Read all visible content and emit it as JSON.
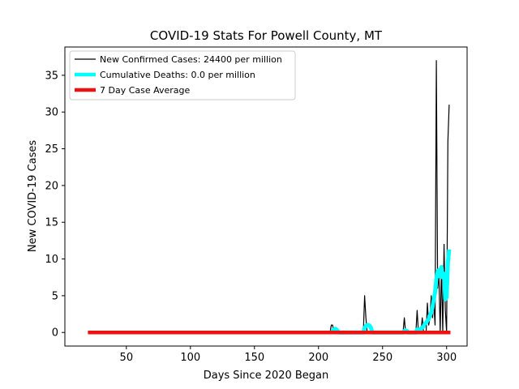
{
  "chart_data": {
    "type": "line",
    "title": "COVID-19 Stats For Powell County, MT",
    "xlabel": "Days Since 2020 Began",
    "ylabel": "New COVID-19 Cases",
    "xlim": [
      2,
      316
    ],
    "ylim": [
      -1.85,
      38.85
    ],
    "xticks": [
      50,
      100,
      150,
      200,
      250,
      300
    ],
    "yticks": [
      0,
      5,
      10,
      15,
      20,
      25,
      30,
      35
    ],
    "grid": false,
    "legend_position": "top-left",
    "series": [
      {
        "name": "New Confirmed Cases: 24400 per million",
        "color": "#000000",
        "points": [
          [
            20,
            0
          ],
          [
            209,
            0
          ],
          [
            210,
            1
          ],
          [
            211,
            1
          ],
          [
            212,
            0
          ],
          [
            235,
            0
          ],
          [
            236,
            5
          ],
          [
            237,
            2
          ],
          [
            238,
            0
          ],
          [
            266,
            0
          ],
          [
            267,
            2
          ],
          [
            268,
            0
          ],
          [
            276,
            0
          ],
          [
            277,
            3
          ],
          [
            278,
            0
          ],
          [
            280,
            0
          ],
          [
            281,
            2
          ],
          [
            282,
            0
          ],
          [
            284,
            0
          ],
          [
            285,
            4
          ],
          [
            286,
            1
          ],
          [
            287,
            2
          ],
          [
            288,
            5
          ],
          [
            289,
            2
          ],
          [
            290,
            4
          ],
          [
            291,
            1
          ],
          [
            292,
            37
          ],
          [
            293,
            6
          ],
          [
            294,
            8
          ],
          [
            295,
            0
          ],
          [
            296,
            9
          ],
          [
            297,
            0
          ],
          [
            298,
            12
          ],
          [
            299,
            3
          ],
          [
            300,
            0
          ],
          [
            301,
            26
          ],
          [
            302,
            31
          ]
        ]
      },
      {
        "name": "Cumulative Deaths: 0.0 per million",
        "color": "#00ffff",
        "points": [
          [
            210,
            0
          ],
          [
            211,
            0.2
          ],
          [
            212,
            0.4
          ],
          [
            213,
            0.5
          ],
          [
            214,
            0.4
          ],
          [
            215,
            0.2
          ],
          [
            216,
            0
          ],
          [
            235,
            0
          ],
          [
            236,
            0.6
          ],
          [
            237,
            0.9
          ],
          [
            238,
            1.0
          ],
          [
            239,
            1.0
          ],
          [
            240,
            0.9
          ],
          [
            241,
            0.6
          ],
          [
            242,
            0
          ],
          [
            266,
            0
          ],
          [
            267,
            0.2
          ],
          [
            268,
            0.3
          ],
          [
            269,
            0.2
          ],
          [
            270,
            0
          ],
          [
            276,
            0
          ],
          [
            277,
            0.4
          ],
          [
            278,
            0.4
          ],
          [
            279,
            0.4
          ],
          [
            280,
            0.5
          ],
          [
            281,
            0.7
          ],
          [
            282,
            0.8
          ],
          [
            283,
            1.2
          ],
          [
            284,
            1.3
          ],
          [
            285,
            1.6
          ],
          [
            286,
            1.8
          ],
          [
            287,
            2.3
          ],
          [
            288,
            2.7
          ],
          [
            289,
            3.5
          ],
          [
            290,
            4.5
          ],
          [
            291,
            5.5
          ],
          [
            292,
            7.3
          ],
          [
            293,
            8.3
          ],
          [
            294,
            8.5
          ],
          [
            295,
            7.6
          ],
          [
            296,
            8.9
          ],
          [
            297,
            7.5
          ],
          [
            298,
            8.0
          ],
          [
            299,
            4.5
          ],
          [
            300,
            4.8
          ],
          [
            301,
            9.5
          ],
          [
            302,
            11.3
          ]
        ]
      },
      {
        "name": "7 Day Case Average",
        "color": "#ee1111",
        "points": [
          [
            20,
            0
          ],
          [
            303,
            0
          ]
        ]
      }
    ]
  }
}
